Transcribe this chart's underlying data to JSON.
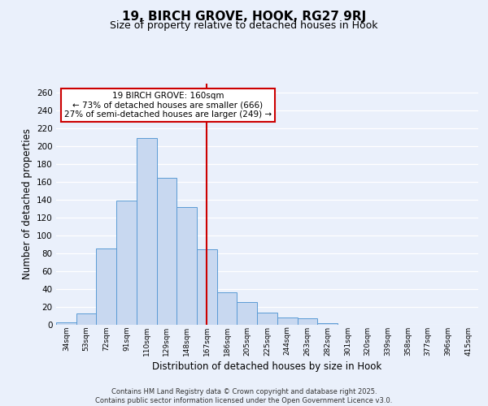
{
  "title": "19, BIRCH GROVE, HOOK, RG27 9RJ",
  "subtitle": "Size of property relative to detached houses in Hook",
  "xlabel": "Distribution of detached houses by size in Hook",
  "ylabel": "Number of detached properties",
  "bar_labels": [
    "34sqm",
    "53sqm",
    "72sqm",
    "91sqm",
    "110sqm",
    "129sqm",
    "148sqm",
    "167sqm",
    "186sqm",
    "205sqm",
    "225sqm",
    "244sqm",
    "263sqm",
    "282sqm",
    "301sqm",
    "320sqm",
    "339sqm",
    "358sqm",
    "377sqm",
    "396sqm",
    "415sqm"
  ],
  "bar_values": [
    3,
    13,
    85,
    139,
    209,
    164,
    132,
    84,
    36,
    25,
    14,
    8,
    7,
    2,
    0,
    0,
    0,
    0,
    0,
    0,
    0
  ],
  "bar_color": "#c8d8f0",
  "bar_edge_color": "#5b9bd5",
  "vline_x_index": 7,
  "vline_color": "#cc0000",
  "annotation_lines": [
    "19 BIRCH GROVE: 160sqm",
    "← 73% of detached houses are smaller (666)",
    "27% of semi-detached houses are larger (249) →"
  ],
  "ylim": [
    0,
    270
  ],
  "yticks": [
    0,
    20,
    40,
    60,
    80,
    100,
    120,
    140,
    160,
    180,
    200,
    220,
    240,
    260
  ],
  "background_color": "#eaf0fb",
  "plot_background": "#eaf0fb",
  "grid_color": "#ffffff",
  "title_fontsize": 11,
  "subtitle_fontsize": 9,
  "footer_lines": [
    "Contains HM Land Registry data © Crown copyright and database right 2025.",
    "Contains public sector information licensed under the Open Government Licence v3.0."
  ]
}
